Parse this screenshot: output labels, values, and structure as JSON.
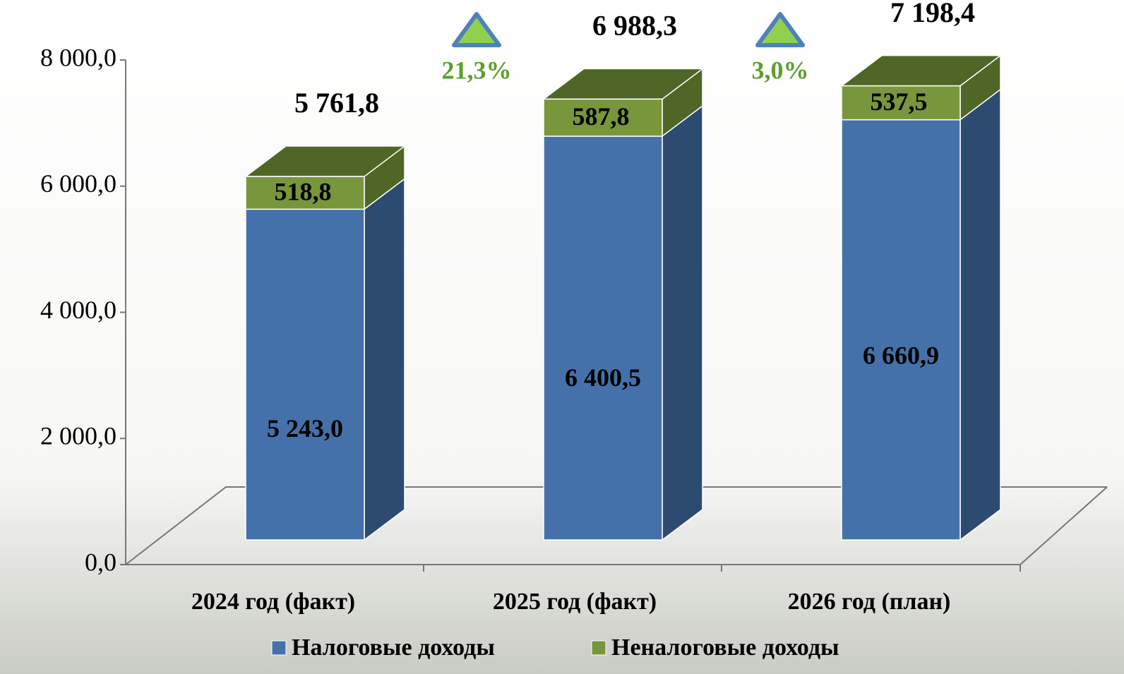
{
  "chart_data": {
    "type": "bar3d_stacked",
    "categories": [
      "2024 год (факт)",
      "2025 год (факт)",
      "2026 год (план)"
    ],
    "series": [
      {
        "name": "Налоговые доходы",
        "color": "#4471a9",
        "side_color": "#2d4a70",
        "values": [
          5243.0,
          6400.5,
          6660.9
        ],
        "value_labels": [
          "5 243,0",
          "6 400,5",
          "6 660,9"
        ]
      },
      {
        "name": "Неналоговые доходы",
        "color": "#78963c",
        "side_color": "#4f6626",
        "values": [
          518.8,
          587.8,
          537.5
        ],
        "value_labels": [
          "518,8",
          "587,8",
          "537,5"
        ]
      }
    ],
    "totals": {
      "values": [
        5761.8,
        6988.3,
        7198.4
      ],
      "value_labels": [
        "5 761,8",
        "6 988,3",
        "7 198,4"
      ]
    },
    "growth_labels": [
      "21,3%",
      "3,0%"
    ],
    "ylim": [
      0,
      8000
    ],
    "yticks": [
      {
        "value": 0,
        "label": "0,0"
      },
      {
        "value": 2000,
        "label": "2 000,0"
      },
      {
        "value": 4000,
        "label": "4 000,0"
      },
      {
        "value": 6000,
        "label": "6 000,0"
      },
      {
        "value": 8000,
        "label": "8 000,0"
      }
    ],
    "legend": "bottom"
  }
}
